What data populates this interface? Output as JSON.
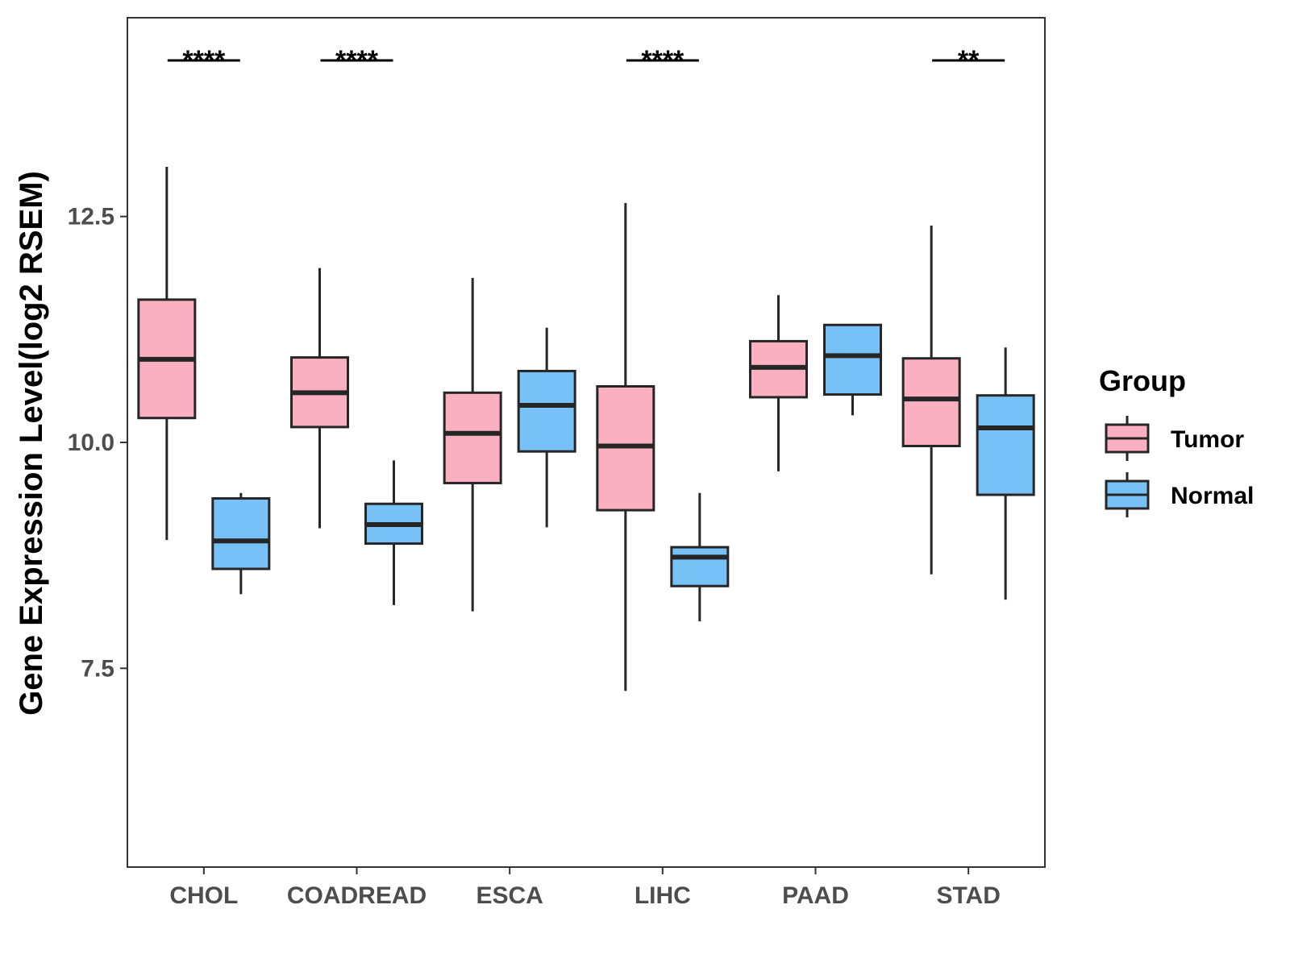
{
  "chart_data": {
    "type": "boxplot",
    "title": "",
    "xlabel": "",
    "ylabel": "Gene Expression Level(log2 RSEM)",
    "ylim": [
      5.3,
      14.7
    ],
    "yticks": [
      7.5,
      10.0,
      12.5
    ],
    "ytick_labels": [
      "7.5",
      "10.0",
      "12.5"
    ],
    "categories": [
      "CHOL",
      "COADREAD",
      "ESCA",
      "LIHC",
      "PAAD",
      "STAD"
    ],
    "legend": {
      "title": "Group",
      "position": "right",
      "entries": [
        {
          "name": "Tumor",
          "color": "#FAB0C1"
        },
        {
          "name": "Normal",
          "color": "#78C1F7"
        }
      ]
    },
    "series": [
      {
        "name": "Tumor",
        "color": "#FAB0C1",
        "boxes": [
          {
            "min": 8.92,
            "q1": 10.27,
            "median": 10.92,
            "q3": 11.58,
            "max": 13.05
          },
          {
            "min": 9.05,
            "q1": 10.17,
            "median": 10.55,
            "q3": 10.94,
            "max": 11.93
          },
          {
            "min": 8.13,
            "q1": 9.55,
            "median": 10.1,
            "q3": 10.55,
            "max": 11.82
          },
          {
            "min": 7.25,
            "q1": 9.25,
            "median": 9.96,
            "q3": 10.62,
            "max": 12.65
          },
          {
            "min": 9.68,
            "q1": 10.5,
            "median": 10.83,
            "q3": 11.12,
            "max": 11.63
          },
          {
            "min": 8.54,
            "q1": 9.96,
            "median": 10.48,
            "q3": 10.93,
            "max": 12.4
          }
        ]
      },
      {
        "name": "Normal",
        "color": "#78C1F7",
        "boxes": [
          {
            "min": 8.32,
            "q1": 8.6,
            "median": 8.91,
            "q3": 9.38,
            "max": 9.44
          },
          {
            "min": 8.2,
            "q1": 8.88,
            "median": 9.09,
            "q3": 9.32,
            "max": 9.8
          },
          {
            "min": 9.06,
            "q1": 9.9,
            "median": 10.41,
            "q3": 10.79,
            "max": 11.27
          },
          {
            "min": 8.02,
            "q1": 8.41,
            "median": 8.73,
            "q3": 8.84,
            "max": 9.44
          },
          {
            "min": 10.3,
            "q1": 10.53,
            "median": 10.96,
            "q3": 11.3,
            "max": 11.3
          },
          {
            "min": 8.26,
            "q1": 9.42,
            "median": 10.16,
            "q3": 10.52,
            "max": 11.05
          }
        ]
      }
    ],
    "significance": [
      {
        "category": "CHOL",
        "label": "****"
      },
      {
        "category": "COADREAD",
        "label": "****"
      },
      {
        "category": "LIHC",
        "label": "****"
      },
      {
        "category": "STAD",
        "label": "**"
      }
    ]
  }
}
